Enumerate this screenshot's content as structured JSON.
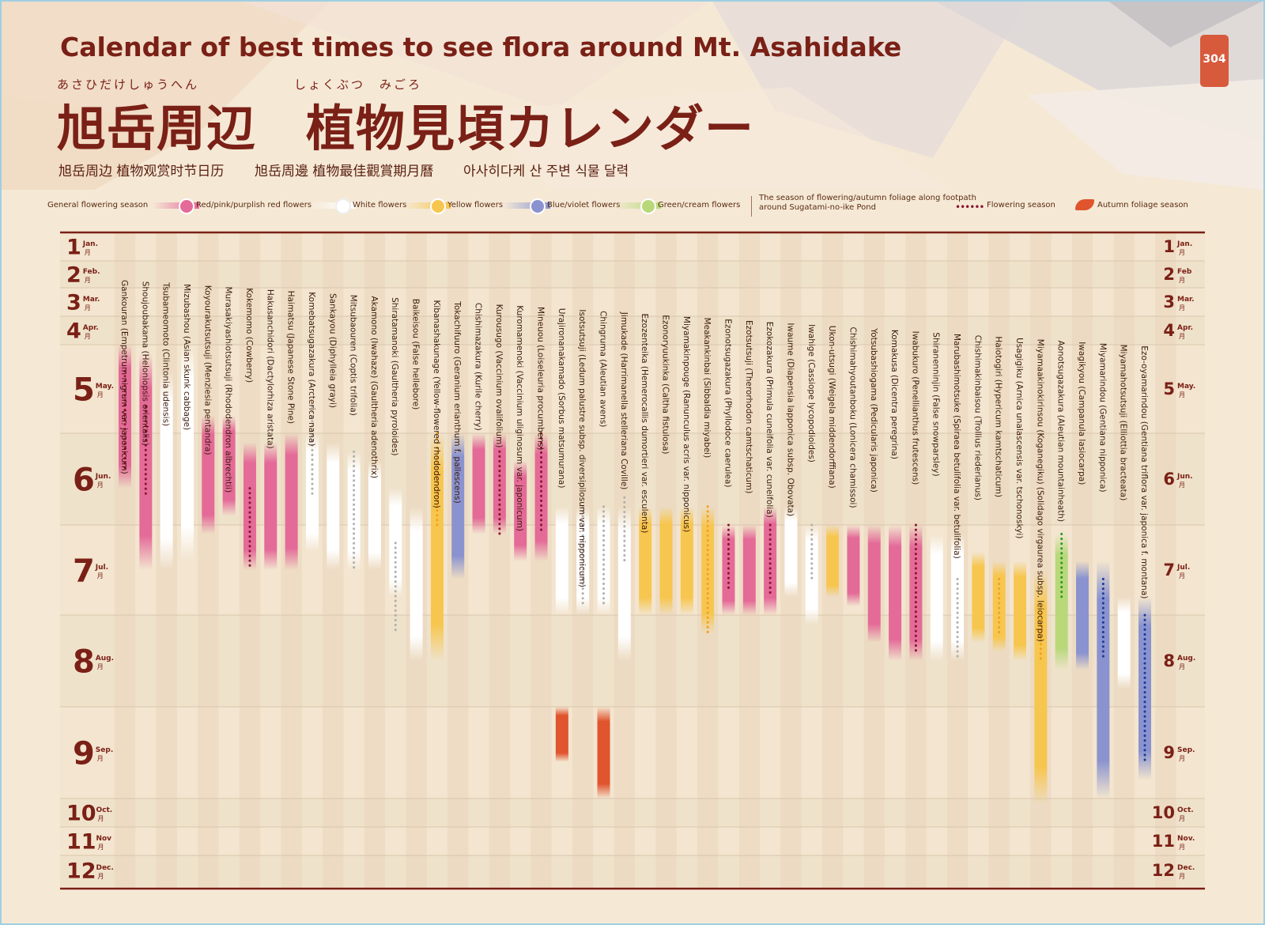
{
  "header": {
    "title_en": "Calendar of best times to see flora around Mt. Asahidake",
    "ruby_left": "あさひだけしゅうへん",
    "ruby_right": "しょくぶつ　みごろ",
    "title_ja": "旭岳周辺　植物見頃カレンダー",
    "subtitle_zh_cn": "旭岳周边 植物观赏时节日历",
    "subtitle_zh_tw": "旭岳周邊 植物最佳觀賞期月曆",
    "subtitle_ko": "아사히다케 산 주변 식물 달력",
    "page_number": "304"
  },
  "legend": {
    "general": "General flowering season",
    "red": "Red/pink/purplish red flowers",
    "white": "White flowers",
    "yellow": "Yellow flowers",
    "blue": "Blue/violet flowers",
    "green": "Green/cream flowers",
    "footpath_line1": "The season of flowering/autumn foliage along footpath",
    "footpath_line2": "around Sugatami-no-ike Pond",
    "flowering_season": "Flowering season",
    "autumn_foliage": "Autumn foliage season"
  },
  "colors": {
    "red": "#e46a98",
    "white": "#ffffff",
    "yellow": "#f7c64f",
    "blue": "#8a93cf",
    "green": "#b8d87a",
    "autumn": "#e0542e",
    "text": "#7a2016"
  },
  "chart_data": {
    "type": "range_calendar",
    "y_axis": "month",
    "y_range": [
      1,
      13
    ],
    "months": [
      {
        "num": "1",
        "en": "Jan.",
        "ja": "月"
      },
      {
        "num": "2",
        "en": "Feb.",
        "ja": "月"
      },
      {
        "num": "3",
        "en": "Mar.",
        "ja": "月"
      },
      {
        "num": "4",
        "en": "Apr.",
        "ja": "月"
      },
      {
        "num": "5",
        "en": "May.",
        "ja": "月"
      },
      {
        "num": "6",
        "en": "Jun.",
        "ja": "月"
      },
      {
        "num": "7",
        "en": "Jul.",
        "ja": "月"
      },
      {
        "num": "8",
        "en": "Aug.",
        "ja": "月"
      },
      {
        "num": "9",
        "en": "Sep.",
        "ja": "月"
      },
      {
        "num": "10",
        "en": "Oct.",
        "ja": "月"
      },
      {
        "num": "11",
        "en": "Nov",
        "ja": "月"
      },
      {
        "num": "12",
        "en": "Dec.",
        "ja": "月"
      }
    ],
    "months_right_en": [
      "Jan.",
      "Feb",
      "Mar.",
      "Apr.",
      "May.",
      "Jun.",
      "Jul.",
      "Aug.",
      "Sep.",
      "Oct.",
      "Nov.",
      "Dec."
    ],
    "plants": [
      {
        "label": "Gankouran (Empetrum nigrum var. japonicum)",
        "color": "red",
        "start": 5.0,
        "end": 6.6,
        "dot": [
          5.3,
          6.4
        ]
      },
      {
        "label": "Shoujoubakama (Heloniopsis orientalis)",
        "color": "red",
        "start": 5.1,
        "end": 7.5,
        "dot": [
          5.7,
          6.7
        ]
      },
      {
        "label": "Tsubameomoto (Clintonia udensis)",
        "color": "white",
        "start": 5.3,
        "end": 7.5
      },
      {
        "label": "Mizubashou (Asian skunk cabbage)",
        "color": "white",
        "start": 5.0,
        "end": 7.4
      },
      {
        "label": "Koyourakutsutsuji (Menziesia pentandra)",
        "color": "red",
        "start": 5.8,
        "end": 7.1
      },
      {
        "label": "Murasakiyashiotsutsuji (Rhododendron albrechtii)",
        "color": "red",
        "start": 5.8,
        "end": 6.9
      },
      {
        "label": "Kokemomo (Cowberry)",
        "color": "red",
        "start": 6.1,
        "end": 7.5,
        "dot": [
          6.6,
          7.5
        ]
      },
      {
        "label": "Hakusanchidori (Dactylorhiza aristata)",
        "color": "red",
        "start": 6.1,
        "end": 7.5
      },
      {
        "label": "Haimatsu (Japanese Stone Pine)",
        "color": "red",
        "start": 6.0,
        "end": 7.5
      },
      {
        "label": "Komebatsugazakura (Arcterica nana)",
        "color": "white",
        "start": 6.0,
        "end": 7.3,
        "dot": [
          5.7,
          6.7
        ]
      },
      {
        "label": "Sankayou (Diphylleia grayi)",
        "color": "white",
        "start": 6.1,
        "end": 7.5
      },
      {
        "label": "Mitsubaouren (Coptis trifolia)",
        "color": "white",
        "start": 6.2,
        "end": 7.5,
        "dot": [
          6.2,
          7.5
        ]
      },
      {
        "label": "Akamono (Iwahaze) (Gaultheria adenothrix)",
        "color": "white",
        "start": 6.3,
        "end": 7.5
      },
      {
        "label": "Shiratamanoki (Gaultheria pyroloides)",
        "color": "white",
        "start": 6.6,
        "end": 7.8,
        "dot": [
          7.2,
          8.2
        ]
      },
      {
        "label": "Baikeisou (False hellebore)",
        "color": "white",
        "start": 6.8,
        "end": 8.5
      },
      {
        "label": "Kibanashakunage (Yellow-flowered rhododendron)",
        "color": "yellow",
        "start": 6.0,
        "end": 8.5,
        "dot": [
          6.0,
          7.0
        ]
      },
      {
        "label": "Tokachifuuro (Geranium erianthum f. pallescens)",
        "color": "blue",
        "start": 6.0,
        "end": 7.6
      },
      {
        "label": "Chishimazakura (Kurile cherry)",
        "color": "red",
        "start": 6.0,
        "end": 7.1
      },
      {
        "label": "Kurousugo (Vaccinium ovalifolium)",
        "color": "red",
        "start": 6.0,
        "end": 7.1,
        "dot": [
          6.2,
          7.1
        ]
      },
      {
        "label": "Kuromamenoki (Vaccinium uliginosum var. japonicum)",
        "color": "red",
        "start": 6.3,
        "end": 7.4
      },
      {
        "label": "Mineuou (Loiseleuria procumbens)",
        "color": "red",
        "start": 6.0,
        "end": 7.4,
        "dot": [
          6.0,
          7.1
        ]
      },
      {
        "label": "Urajironanakamado (Sorbus matsumurana)",
        "color": "white",
        "start": 6.8,
        "end": 8.0,
        "autumn": [
          9.0,
          9.6
        ]
      },
      {
        "label": "Isotsutsuji (Ledum palustre subsp. diversipilosum var. nipponicum)",
        "color": "white",
        "start": 6.8,
        "end": 8.0,
        "dot": [
          6.8,
          7.9
        ]
      },
      {
        "label": "Chingruma (Aleutian avens)",
        "color": "white",
        "start": 6.8,
        "end": 8.0,
        "dot": [
          6.8,
          7.9
        ],
        "autumn": [
          9.0,
          10.0
        ]
      },
      {
        "label": "Jimukade (Harrimanella stelleriana Coville)",
        "color": "white",
        "start": 6.8,
        "end": 8.5,
        "dot": [
          6.7,
          7.4
        ]
      },
      {
        "label": "Ezozenteika (Hemerocallis dumortieri var. esculenta)",
        "color": "yellow",
        "start": 6.8,
        "end": 8.0
      },
      {
        "label": "Ezonoryuukinka (Caltha fistulosa)",
        "color": "yellow",
        "start": 6.8,
        "end": 8.0
      },
      {
        "label": "Miyamakinpouge (Ranunculus acris var. nipponicus)",
        "color": "yellow",
        "start": 6.8,
        "end": 8.0
      },
      {
        "label": "Meakankinbai (Sibbaldia miyabei)",
        "color": "yellow",
        "start": 6.8,
        "end": 8.2,
        "dot": [
          6.8,
          8.2
        ]
      },
      {
        "label": "Ezonotsugazakura (Phyllodoce caerulea)",
        "color": "red",
        "start": 7.0,
        "end": 8.0,
        "dot": [
          7.0,
          7.7
        ]
      },
      {
        "label": "Ezotsutsuji (Therorhodon camtschaticum)",
        "color": "red",
        "start": 7.0,
        "end": 8.0
      },
      {
        "label": "Ezokozakura (Primula cuneifolia var. cuneifolia)",
        "color": "red",
        "start": 6.8,
        "end": 8.0,
        "dot": [
          7.0,
          7.8
        ]
      },
      {
        "label": "Iwaume (Diapensia lapponica subsp. Obovata)",
        "color": "white",
        "start": 6.8,
        "end": 7.8
      },
      {
        "label": "Iwahige (Cassiope lycopodioides)",
        "color": "white",
        "start": 7.0,
        "end": 8.1,
        "dot": [
          7.0,
          7.6
        ]
      },
      {
        "label": "Ukon-utsugi (Weigela middendorffiana)",
        "color": "yellow",
        "start": 7.0,
        "end": 7.8
      },
      {
        "label": "Chishimahyoutanboku (Lonicera chamissoi)",
        "color": "red",
        "start": 7.0,
        "end": 7.9
      },
      {
        "label": "Yotsubashiogama (Pedicularis japonica)",
        "color": "red",
        "start": 7.0,
        "end": 8.3
      },
      {
        "label": "Komakusa (Dicentra peregrina)",
        "color": "red",
        "start": 7.0,
        "end": 8.5
      },
      {
        "label": "Iwabukuro (Penellianthus frutescens)",
        "color": "red",
        "start": 7.0,
        "end": 8.5,
        "dot": [
          7.0,
          8.4
        ]
      },
      {
        "label": "Shiranenninjin (False snowparsley)",
        "color": "white",
        "start": 7.1,
        "end": 8.5
      },
      {
        "label": "Marubashimotsuke (Spiraea betulifolia var. betulifolia)",
        "color": "white",
        "start": 7.1,
        "end": 8.5,
        "dot": [
          7.6,
          8.5
        ]
      },
      {
        "label": "Chishimakinbaisou (Trollius riederianus)",
        "color": "yellow",
        "start": 7.3,
        "end": 8.3
      },
      {
        "label": "Haiotogiri (Hypericum kamtschaticum)",
        "color": "yellow",
        "start": 7.4,
        "end": 8.4,
        "dot": [
          7.6,
          8.2
        ]
      },
      {
        "label": "Usagigiku (Arnica unalascensis var. tschonoskyi)",
        "color": "yellow",
        "start": 7.4,
        "end": 8.5
      },
      {
        "label": "Miyamaakinokirinsou (Koganegiku) (Solidago virgaurea subsp. leiocarpa)",
        "color": "yellow",
        "start": 7.5,
        "end": 10.2,
        "dot": [
          8.0,
          8.5
        ]
      },
      {
        "label": "Aonotsugazakura (Aleutian mountainheath)",
        "color": "green",
        "start": 7.1,
        "end": 8.6,
        "dot": [
          7.1,
          7.8
        ]
      },
      {
        "label": "Iwagikyou (Campanula lasiocarpa)",
        "color": "blue",
        "start": 7.4,
        "end": 8.6
      },
      {
        "label": "Miyamarindou (Gentiana nipponica)",
        "color": "blue",
        "start": 7.4,
        "end": 10.0,
        "dot": [
          7.6,
          8.5
        ]
      },
      {
        "label": "Miyamahotsutsuji (Elliottia bracteata)",
        "color": "white",
        "start": 7.8,
        "end": 8.8
      },
      {
        "label": "Ezo-oyamarindou (Gentiana triflora var. japonica f. montana)",
        "color": "blue",
        "start": 7.8,
        "end": 9.8,
        "dot": [
          8.0,
          9.6
        ]
      }
    ]
  }
}
